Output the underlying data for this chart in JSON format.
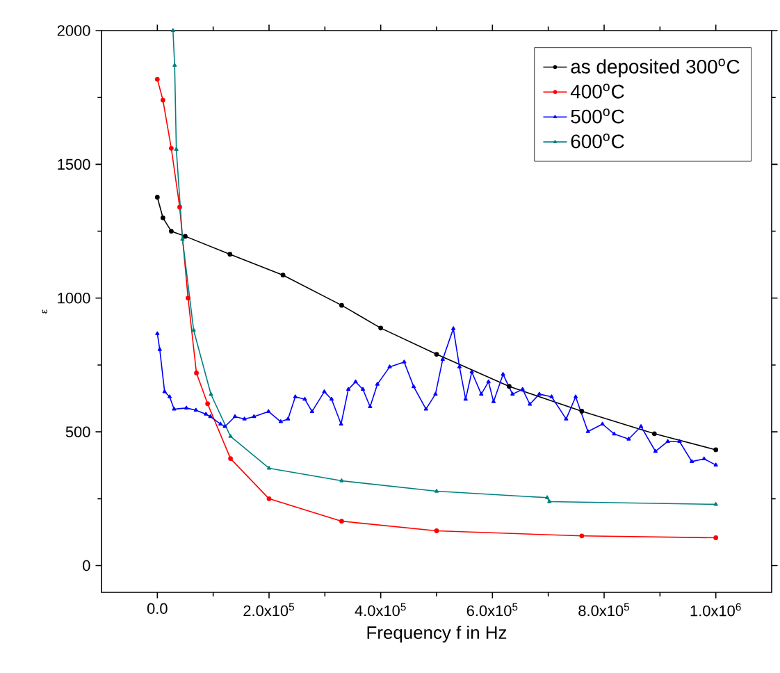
{
  "chart_data": {
    "type": "line",
    "xlabel": "Frequency f in Hz",
    "ylabel": "ε",
    "xlim": [
      -100000,
      1100000
    ],
    "ylim": [
      -100,
      2000
    ],
    "xticks": [
      {
        "value": 0,
        "label": "0.0"
      },
      {
        "value": 200000,
        "label": "2.0x10$^{5}$"
      },
      {
        "value": 400000,
        "label": "4.0x10$^{5}$"
      },
      {
        "value": 600000,
        "label": "6.0x10$^{5}$"
      },
      {
        "value": 800000,
        "label": "8.0x10$^{5}$"
      },
      {
        "value": 1000000,
        "label": "1.0x10$^{6}$"
      }
    ],
    "yticks": [
      0,
      500,
      1000,
      1500,
      2000
    ],
    "grid": false,
    "legend": "top right",
    "series": [
      {
        "name": "as deposited 300$^{o}$C",
        "color": "#000000",
        "marker": "circle",
        "x": [
          0,
          10000,
          25000,
          50000,
          130000,
          225000,
          330000,
          400000,
          500000,
          630000,
          760000,
          890000,
          1000000
        ],
        "values": [
          1377,
          1300,
          1250,
          1231,
          1164,
          1086,
          973,
          888,
          790,
          670,
          577,
          493,
          433
        ]
      },
      {
        "name": "400$^{o}$C",
        "color": "#ff0000",
        "marker": "circle",
        "x": [
          0,
          10000,
          25000,
          40000,
          55000,
          70000,
          90000,
          131000,
          200000,
          330000,
          500000,
          760000,
          1000000
        ],
        "values": [
          1818,
          1740,
          1560,
          1340,
          1000,
          720,
          605,
          400,
          250,
          166,
          130,
          111,
          104
        ]
      },
      {
        "name": "500$^{o}$C",
        "color": "#0000ff",
        "marker": "triangle",
        "x": [
          0,
          4300,
          13000,
          22000,
          30000,
          52000,
          69000,
          87000,
          95000,
          113000,
          121000,
          139000,
          156000,
          173000,
          199000,
          221000,
          234000,
          247000,
          264000,
          277000,
          299000,
          312000,
          329000,
          342000,
          355000,
          368000,
          381000,
          394000,
          416000,
          442000,
          459000,
          481000,
          498000,
          511000,
          530000,
          541000,
          552000,
          563000,
          580000,
          593000,
          602000,
          619000,
          636000,
          654000,
          667000,
          684000,
          706000,
          732000,
          749000,
          771000,
          797000,
          818000,
          844000,
          866000,
          892000,
          914000,
          935000,
          957000,
          979000,
          1000000
        ],
        "values": [
          867,
          808,
          650,
          631,
          585,
          589,
          581,
          566,
          557,
          529,
          520,
          557,
          548,
          557,
          576,
          538,
          548,
          631,
          622,
          576,
          650,
          622,
          529,
          659,
          687,
          659,
          594,
          678,
          743,
          761,
          669,
          585,
          641,
          771,
          886,
          743,
          622,
          724,
          641,
          687,
          613,
          715,
          641,
          659,
          603,
          641,
          631,
          548,
          631,
          501,
          529,
          492,
          473,
          520,
          427,
          464,
          464,
          389,
          399,
          376
        ]
      },
      {
        "name": "600$^{o}$C",
        "color": "#008080",
        "marker": "triangle",
        "x": [
          28000,
          31000,
          34000,
          45000,
          65000,
          96000,
          131000,
          200000,
          330000,
          500000,
          698000,
          702000,
          1000000
        ],
        "values": [
          2000,
          1870,
          1556,
          1220,
          880,
          640,
          483,
          364,
          317,
          278,
          254,
          239,
          229
        ]
      }
    ]
  }
}
